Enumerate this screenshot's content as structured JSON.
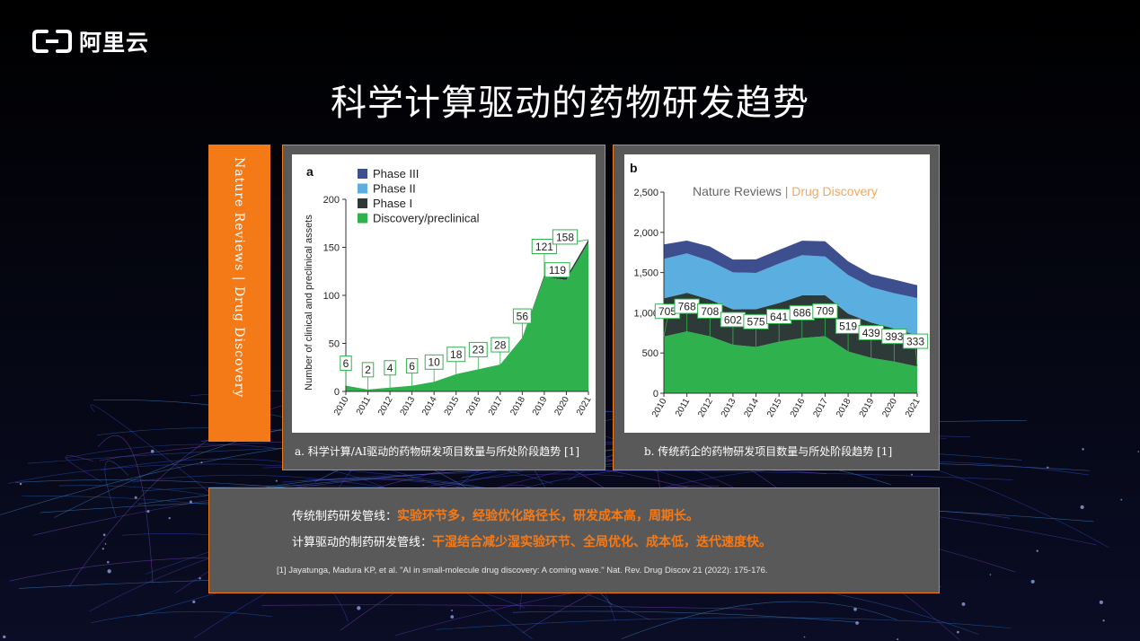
{
  "logo": {
    "text": "阿里云"
  },
  "page_title": "科学计算驱动的药物研发趋势",
  "side_tab": {
    "text": "Nature Reviews | Drug Discovery"
  },
  "panel_a": {
    "caption": "a. 科学计算/AI驱动的药物研发项目数量与所处阶段趋势 [1]"
  },
  "panel_b": {
    "caption": "b. 传统药企的药物研发项目数量与所处阶段趋势 [1]"
  },
  "bottom": {
    "line1_prefix": "传统制药研发管线：",
    "line1_highlight": "实验环节多，经验优化路径长，研发成本高，周期长。",
    "line2_prefix": "计算驱动的制药研发管线：",
    "line2_highlight": "干湿结合减少湿实验环节、全局优化、成本低，迭代速度快。",
    "reference": "[1] Jayatunga, Madura KP, et al. \"AI in small-molecule drug discovery: A coming wave.\" Nat. Rev. Drug Discov 21 (2022): 175-176."
  },
  "colors": {
    "accent": "#f47a18",
    "panel_bg": "#595959",
    "phase3": "#3d4f8f",
    "phase2": "#5aaee0",
    "phase1": "#2e3a38",
    "discovery": "#2fb24e"
  },
  "chart_data": [
    {
      "type": "area",
      "panel_letter": "a",
      "ylabel": "Number of clinical and preclinical assets",
      "xlabel": "",
      "x": [
        "2010",
        "2011",
        "2012",
        "2013",
        "2014",
        "2015",
        "2016",
        "2017",
        "2018",
        "2019",
        "2020",
        "2021"
      ],
      "ylim": [
        0,
        200
      ],
      "yticks": [
        0,
        50,
        100,
        150,
        200
      ],
      "legend_position": "top-left",
      "series": [
        {
          "name": "Phase III",
          "values": [
            0,
            0,
            0,
            0,
            0,
            0,
            0,
            0,
            0,
            0,
            0,
            0
          ]
        },
        {
          "name": "Phase II",
          "values": [
            0,
            0,
            0,
            0,
            0,
            0,
            0,
            0,
            0,
            0,
            0,
            0
          ]
        },
        {
          "name": "Phase I",
          "values": [
            0,
            0,
            0,
            0,
            0,
            0,
            0,
            0,
            0,
            2,
            3,
            3
          ]
        },
        {
          "name": "Discovery/preclinical",
          "values": [
            6,
            2,
            4,
            6,
            10,
            18,
            23,
            28,
            56,
            119,
            116,
            155
          ]
        }
      ],
      "totals": [
        6,
        2,
        4,
        6,
        10,
        18,
        23,
        28,
        56,
        121,
        119,
        158
      ],
      "data_labels": [
        "6",
        "2",
        "4",
        "6",
        "10",
        "18",
        "23",
        "28",
        "56",
        "121",
        "119",
        "158"
      ],
      "grid": false
    },
    {
      "type": "area",
      "panel_letter": "b",
      "title": "Nature Reviews | Drug Discovery",
      "title_parts": [
        "Nature Reviews ",
        "|",
        " Drug Discovery"
      ],
      "xlabel": "",
      "ylabel": "",
      "x": [
        "2010",
        "2011",
        "2012",
        "2013",
        "2014",
        "2015",
        "2016",
        "2017",
        "2018",
        "2019",
        "2020",
        "2021"
      ],
      "ylim": [
        0,
        2500
      ],
      "yticks": [
        0,
        500,
        1000,
        1500,
        2000,
        2500
      ],
      "ytick_labels": [
        "0",
        "500",
        "1,000",
        "1,500",
        "2,000",
        "2,500"
      ],
      "series": [
        {
          "name": "Discovery/preclinical",
          "values": [
            705,
            768,
            708,
            602,
            575,
            641,
            686,
            709,
            519,
            439,
            393,
            333
          ]
        },
        {
          "name": "Phase I",
          "values": [
            475,
            480,
            455,
            440,
            470,
            480,
            530,
            510,
            470,
            440,
            410,
            390
          ]
        },
        {
          "name": "Phase II",
          "values": [
            490,
            490,
            480,
            460,
            450,
            490,
            500,
            480,
            480,
            440,
            440,
            460
          ]
        },
        {
          "name": "Phase III",
          "values": [
            180,
            160,
            180,
            160,
            170,
            170,
            180,
            190,
            170,
            160,
            170,
            160
          ]
        }
      ],
      "data_labels": [
        "705",
        "768",
        "708",
        "602",
        "575",
        "641",
        "686",
        "709",
        "519",
        "439",
        "393",
        "333"
      ],
      "grid": false
    }
  ]
}
